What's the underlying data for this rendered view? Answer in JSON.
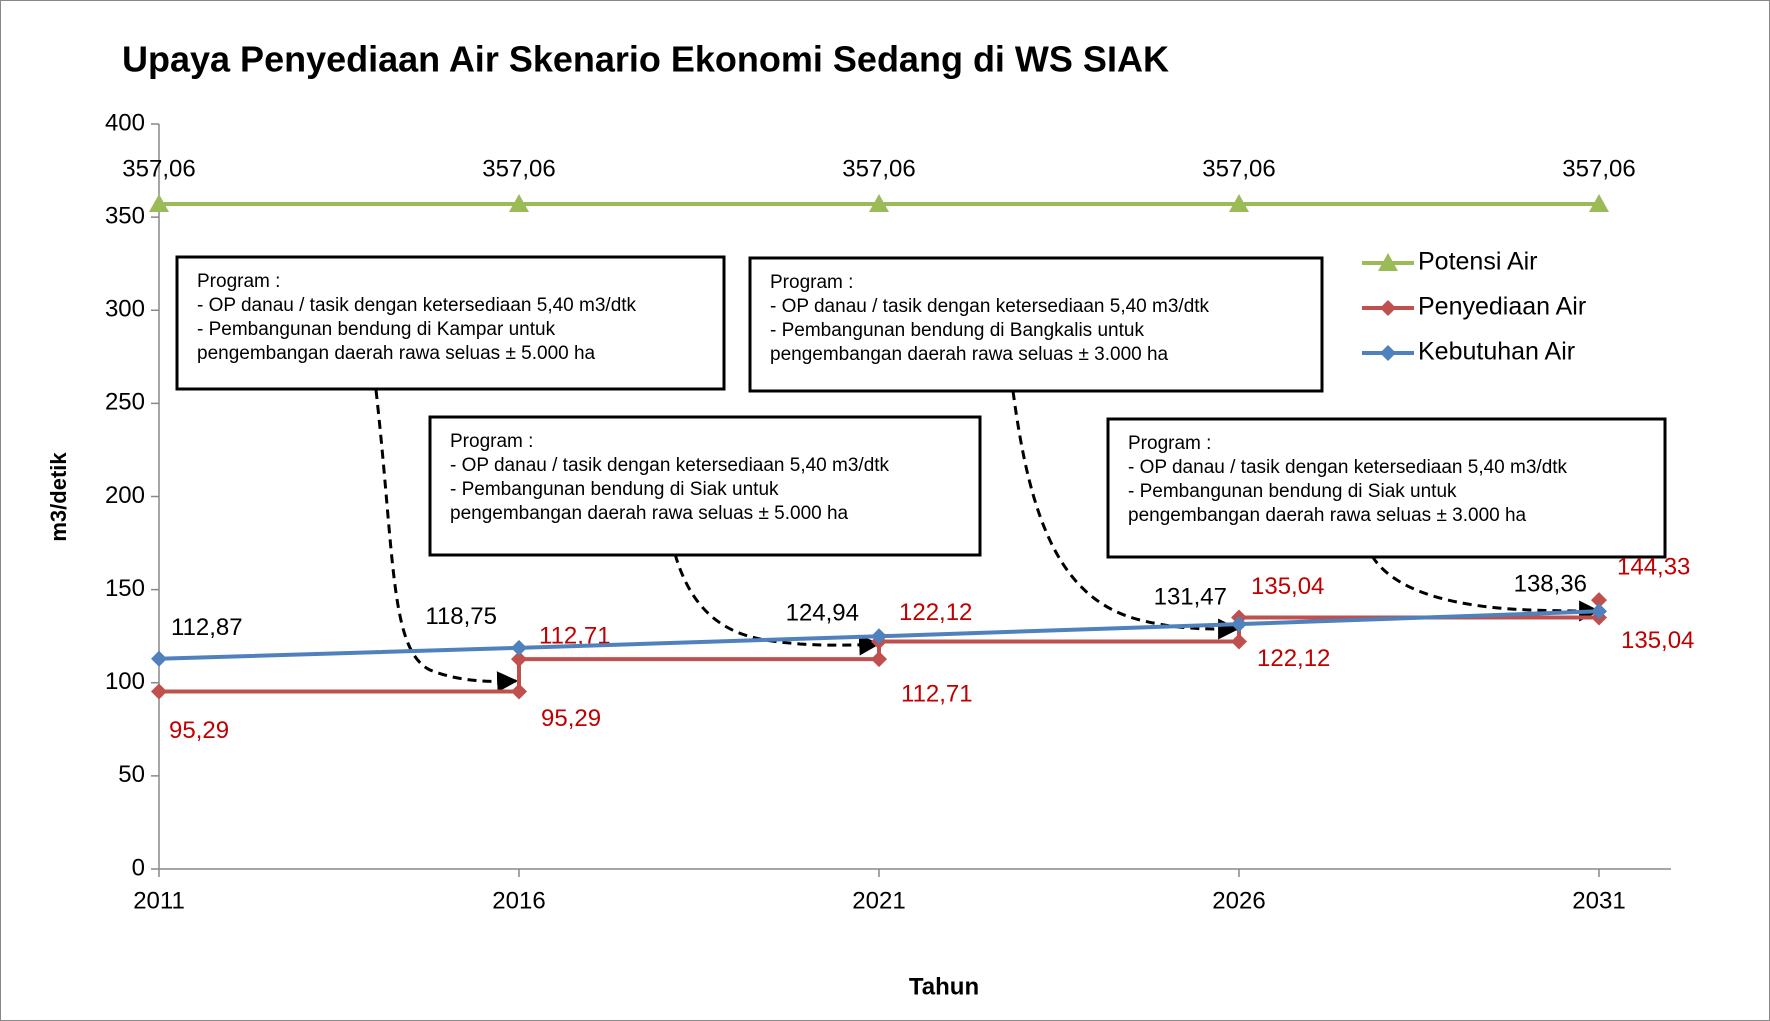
{
  "chart_data": {
    "type": "line",
    "title": "Upaya Penyediaan Air Skenario Ekonomi Sedang di WS SIAK",
    "xlabel": "Tahun",
    "ylabel": "m3/detik",
    "xlim": [
      2011,
      2032
    ],
    "xticks": [
      2011,
      2016,
      2021,
      2026,
      2031
    ],
    "ylim": [
      0,
      400
    ],
    "yticks": [
      0,
      50,
      100,
      150,
      200,
      250,
      300,
      350,
      400
    ],
    "grid": false,
    "legend": "upper right",
    "series": [
      {
        "name": "Potensi Air",
        "color": "#9bbb59",
        "marker": "triangle",
        "x": [
          2011,
          2016,
          2021,
          2026,
          2031
        ],
        "values": [
          357.06,
          357.06,
          357.06,
          357.06,
          357.06
        ],
        "value_labels": [
          "357,06",
          "357,06",
          "357,06",
          "357,06",
          "357,06"
        ]
      },
      {
        "name": "Penyediaan Air",
        "color": "#c0504d",
        "marker": "diamond",
        "x": [
          2011,
          2016,
          2016,
          2021,
          2021,
          2026,
          2026,
          2031,
          2031
        ],
        "values": [
          95.29,
          95.29,
          112.71,
          112.71,
          122.12,
          122.12,
          135.04,
          135.04,
          144.33
        ],
        "value_labels": [
          "95,29",
          "95,29",
          "112,71",
          "112,71",
          "122,12",
          "122,12",
          "135,04",
          "135,04",
          "144,33"
        ]
      },
      {
        "name": "Kebutuhan Air",
        "color": "#4f81bd",
        "marker": "diamond",
        "x": [
          2011,
          2016,
          2021,
          2026,
          2031
        ],
        "values": [
          112.87,
          118.75,
          124.94,
          131.47,
          138.36
        ],
        "value_labels": [
          "112,87",
          "118,75",
          "124,94",
          "131,47",
          "138,36"
        ]
      }
    ],
    "annotations": [
      {
        "lines": [
          "Program :",
          "- OP danau / tasik dengan ketersediaan 5,40 m3/dtk",
          "- Pembangunan bendung di Kampar untuk",
          "pengembangan daerah rawa seluas ± 5.000 ha"
        ]
      },
      {
        "lines": [
          "Program :",
          "- OP danau / tasik dengan ketersediaan 5,40 m3/dtk",
          "- Pembangunan bendung di Siak untuk",
          "pengembangan daerah rawa seluas ± 5.000 ha"
        ]
      },
      {
        "lines": [
          "Program :",
          "- OP danau / tasik dengan ketersediaan 5,40 m3/dtk",
          "- Pembangunan bendung di Bangkalis untuk",
          "pengembangan daerah rawa seluas ± 3.000 ha"
        ]
      },
      {
        "lines": [
          "Program :",
          "- OP danau / tasik dengan ketersediaan 5,40 m3/dtk",
          "- Pembangunan bendung di Siak untuk",
          "pengembangan daerah rawa seluas ± 3.000 ha"
        ]
      }
    ]
  }
}
